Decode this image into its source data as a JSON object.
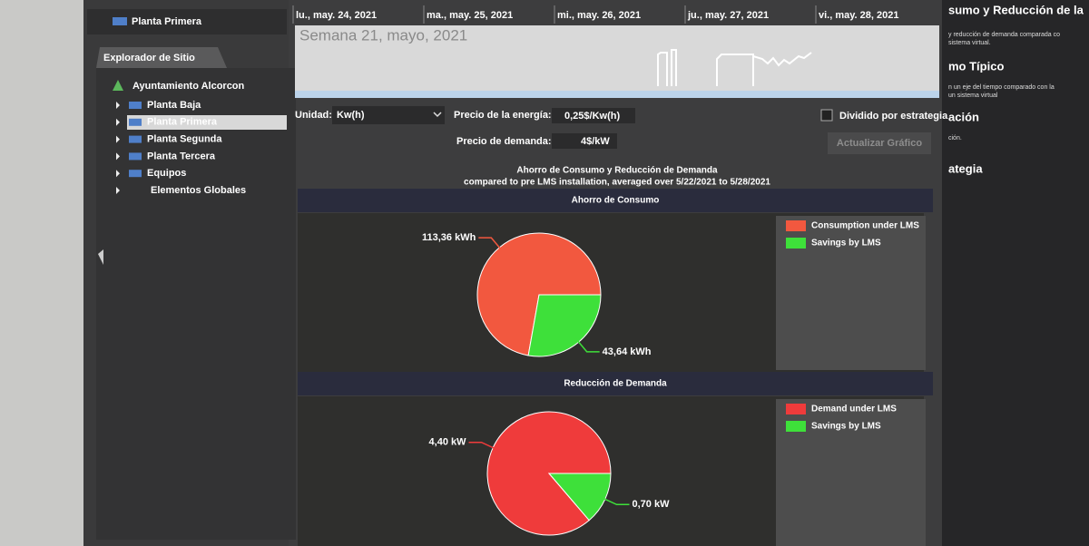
{
  "header": {
    "location": "Planta Primera"
  },
  "explorer": {
    "title": "Explorador de Sitio",
    "root": "Ayuntamiento Alcorcon",
    "items": [
      "Planta Baja",
      "Planta Primera",
      "Planta Segunda",
      "Planta Tercera",
      "Equipos",
      "Elementos Globales"
    ]
  },
  "timeline": {
    "days": [
      "lu., may. 24, 2021",
      "ma., may. 25, 2021",
      "mi., may. 26, 2021",
      "ju., may. 27, 2021",
      "vi., may. 28, 2021"
    ],
    "week": "Semana 21, mayo, 2021"
  },
  "controls": {
    "unit_label": "Unidad:",
    "unit": "Kw(h)",
    "energy_price_label": "Precio de la energía:",
    "energy_price": "0,25$/Kw(h)",
    "split_label": "Dividido por estrategia",
    "demand_price_label": "Precio de demanda:",
    "demand_price": "4$/kW",
    "update_button": "Actualizar Gráfico"
  },
  "report": {
    "title": "Ahorro de Consumo y Reducción de Demanda",
    "subtitle": "compared to pre LMS installation, averaged over 5/22/2021 to 5/28/2021"
  },
  "chart_data": [
    {
      "type": "pie",
      "title": "Ahorro de Consumo",
      "categories": [
        "Consumption under LMS",
        "Savings by LMS"
      ],
      "values": [
        113.36,
        43.64
      ],
      "value_labels": [
        "113,36 kWh",
        "43,64 kWh"
      ],
      "colors": [
        "#f2583f",
        "#3ee03a"
      ]
    },
    {
      "type": "pie",
      "title": "Reducción de Demanda",
      "categories": [
        "Demand under LMS",
        "Savings by LMS"
      ],
      "values": [
        4.4,
        0.7
      ],
      "value_labels": [
        "4,40 kW",
        "0,70 kW"
      ],
      "colors": [
        "#ef3b3b",
        "#3ee03a"
      ]
    }
  ],
  "right_panel": {
    "headings": [
      "sumo y Reducción de la",
      "mo Típico",
      "ación",
      "ategia"
    ],
    "lines": [
      "y reducción de demanda comparada co",
      "sistema virtual.",
      "n un eje del tiempo comparado con la",
      "un sistema virtual",
      "ción."
    ]
  }
}
